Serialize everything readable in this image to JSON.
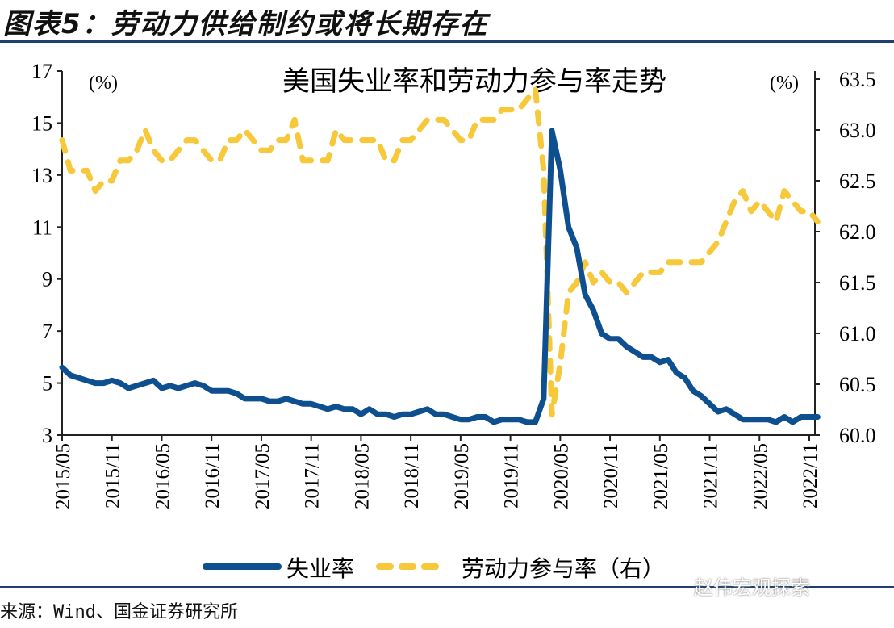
{
  "figure_title": "图表5：劳动力供给制约或将长期存在",
  "source": "来源：Wind、国金证券研究所",
  "watermark": "赵伟宏观探索",
  "chart_data": {
    "type": "line",
    "title": "美国失业率和劳动力参与率走势",
    "left_unit": "(%)",
    "right_unit": "(%)",
    "left_ylim": [
      3,
      17
    ],
    "left_ticks": [
      "3",
      "5",
      "7",
      "9",
      "11",
      "13",
      "15",
      "17"
    ],
    "right_ylim": [
      60.0,
      63.5
    ],
    "right_ticks": [
      "60.0",
      "60.5",
      "61.0",
      "61.5",
      "62.0",
      "62.5",
      "63.0",
      "63.5"
    ],
    "x_ticks": [
      "2015/05",
      "2015/11",
      "2016/05",
      "2016/11",
      "2017/05",
      "2017/11",
      "2018/05",
      "2018/11",
      "2019/05",
      "2019/11",
      "2020/05",
      "2020/11",
      "2021/05",
      "2021/11",
      "2022/05",
      "2022/11"
    ],
    "x_start": "2015/05",
    "x_frequency": "monthly",
    "colors": {
      "unemployment": "#0e4f8f",
      "participation": "#f6c83a"
    },
    "series": [
      {
        "name": "失业率",
        "axis": "left",
        "style": "solid",
        "values": [
          5.6,
          5.3,
          5.2,
          5.1,
          5.0,
          5.0,
          5.1,
          5.0,
          4.8,
          4.9,
          5.0,
          5.1,
          4.8,
          4.9,
          4.8,
          4.9,
          5.0,
          4.9,
          4.7,
          4.7,
          4.7,
          4.6,
          4.4,
          4.4,
          4.4,
          4.3,
          4.3,
          4.4,
          4.3,
          4.2,
          4.2,
          4.1,
          4.0,
          4.1,
          4.0,
          4.0,
          3.8,
          4.0,
          3.8,
          3.8,
          3.7,
          3.8,
          3.8,
          3.9,
          4.0,
          3.8,
          3.8,
          3.7,
          3.6,
          3.6,
          3.7,
          3.7,
          3.5,
          3.6,
          3.6,
          3.6,
          3.5,
          3.5,
          4.4,
          14.7,
          13.2,
          11.0,
          10.2,
          8.4,
          7.8,
          6.9,
          6.7,
          6.7,
          6.4,
          6.2,
          6.0,
          6.0,
          5.8,
          5.9,
          5.4,
          5.2,
          4.7,
          4.5,
          4.2,
          3.9,
          4.0,
          3.8,
          3.6,
          3.6,
          3.6,
          3.6,
          3.5,
          3.7,
          3.5,
          3.7,
          3.7,
          3.7
        ]
      },
      {
        "name": "劳动力参与率（右）",
        "axis": "right",
        "style": "dashed",
        "values": [
          62.9,
          62.6,
          62.6,
          62.6,
          62.4,
          62.5,
          62.5,
          62.7,
          62.7,
          62.8,
          63.0,
          62.8,
          62.7,
          62.7,
          62.8,
          62.9,
          62.9,
          62.8,
          62.7,
          62.7,
          62.9,
          62.9,
          63.0,
          62.9,
          62.8,
          62.8,
          62.9,
          62.9,
          63.1,
          62.7,
          62.7,
          62.7,
          62.7,
          63.0,
          62.9,
          62.9,
          62.9,
          62.9,
          62.9,
          62.7,
          62.7,
          62.9,
          62.9,
          63.0,
          63.1,
          63.1,
          63.1,
          63.0,
          62.9,
          62.9,
          63.1,
          63.1,
          63.1,
          63.2,
          63.2,
          63.2,
          63.3,
          63.4,
          62.6,
          60.2,
          60.7,
          61.4,
          61.5,
          61.7,
          61.5,
          61.6,
          61.5,
          61.5,
          61.4,
          61.5,
          61.6,
          61.6,
          61.6,
          61.7,
          61.7,
          61.7,
          61.7,
          61.7,
          61.8,
          61.9,
          62.1,
          62.3,
          62.4,
          62.2,
          62.3,
          62.2,
          62.1,
          62.4,
          62.3,
          62.2,
          62.2,
          62.1
        ]
      }
    ],
    "legend_position": "bottom"
  }
}
